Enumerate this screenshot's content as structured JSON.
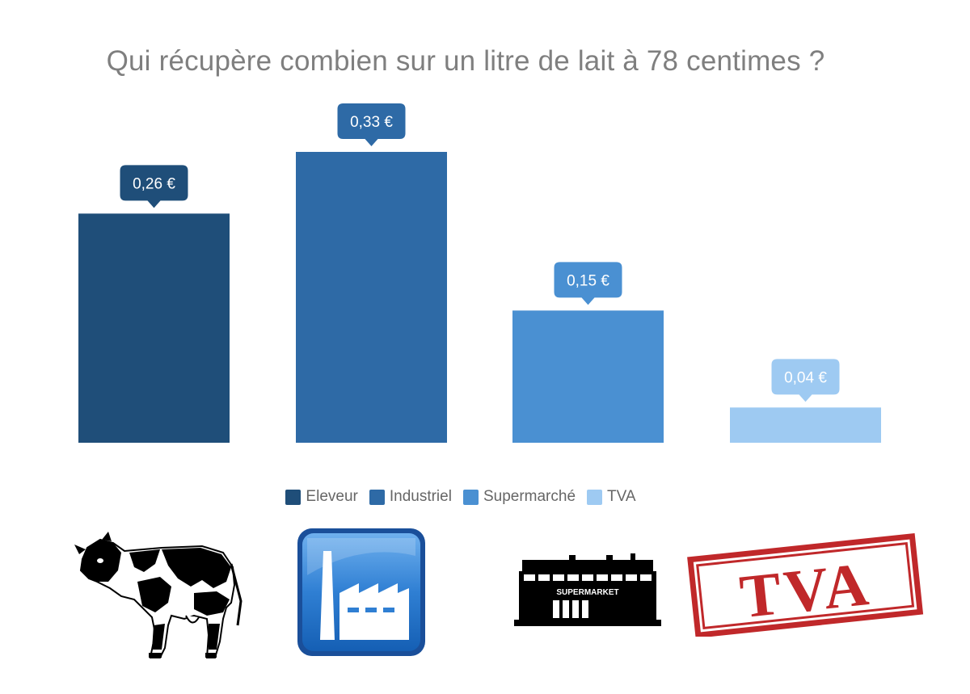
{
  "title": "Qui récupère combien sur un litre de lait à 78 centimes ?",
  "chart_data": {
    "type": "bar",
    "title": "Qui récupère combien sur un litre de lait à 78 centimes ?",
    "categories": [
      "Eleveur",
      "Industriel",
      "Supermarché",
      "TVA"
    ],
    "values": [
      0.26,
      0.33,
      0.15,
      0.04
    ],
    "value_labels": [
      "0,26 €",
      "0,33 €",
      "0,15 €",
      "0,04 €"
    ],
    "colors": [
      "#1f4e79",
      "#2e6aa6",
      "#4a90d2",
      "#9ecaf2"
    ],
    "ylim": [
      0,
      0.33
    ],
    "grid": false,
    "legend": "bottom-center"
  },
  "legend": [
    {
      "label": "Eleveur",
      "color": "#1f4e79"
    },
    {
      "label": "Industriel",
      "color": "#2e6aa6"
    },
    {
      "label": "Supermarché",
      "color": "#4a90d2"
    },
    {
      "label": "TVA",
      "color": "#9ecaf2"
    }
  ],
  "icons": {
    "cow": "cow-icon",
    "factory": "factory-icon",
    "supermarket": "supermarket-icon",
    "stamp": "tva-stamp-icon"
  },
  "supermarket_sign": "SUPERMARKET",
  "stamp_text": "TVA"
}
